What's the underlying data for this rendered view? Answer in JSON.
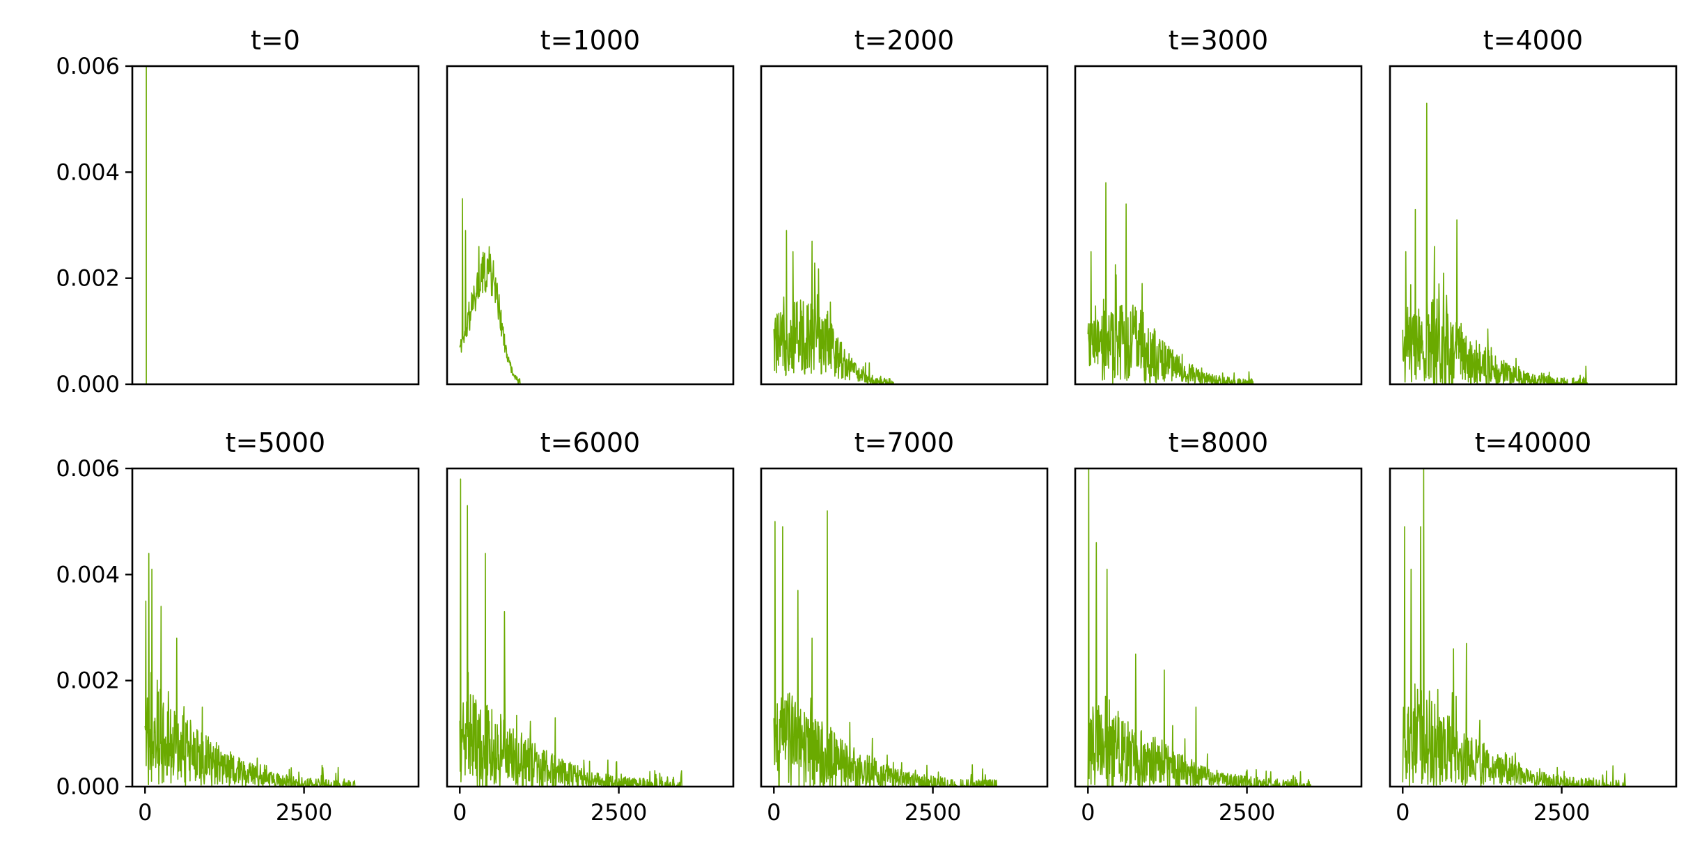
{
  "chart_data": {
    "type": "line",
    "layout": "2x5 grid of subplots",
    "line_color": "#6aaa00",
    "shared_x_range": [
      -200,
      4300
    ],
    "shared_y_range": [
      0,
      0.006
    ],
    "x_ticks": [
      0,
      2500
    ],
    "x_tick_labels": [
      "0",
      "2500"
    ],
    "y_ticks": [
      0.0,
      0.002,
      0.004,
      0.006
    ],
    "y_tick_labels": [
      "0.000",
      "0.002",
      "0.004",
      "0.006"
    ],
    "panels": [
      {
        "title": "t=0",
        "shape": "spike",
        "spike_x": 20,
        "spike_y": 0.0065
      },
      {
        "title": "t=1000",
        "shape": "hump",
        "start": 0,
        "peak_x": 450,
        "peak_y": 0.0022,
        "end": 950,
        "noise": 0.0005,
        "spikes": [
          [
            40,
            0.0035
          ],
          [
            90,
            0.0029
          ],
          [
            300,
            0.0026
          ]
        ]
      },
      {
        "title": "t=2000",
        "shape": "decay",
        "start": 0,
        "peak_x": 700,
        "peak_y": 0.0011,
        "end": 1900,
        "noise": 0.0009,
        "spikes": [
          [
            200,
            0.0029
          ],
          [
            300,
            0.0025
          ],
          [
            600,
            0.0027
          ]
        ]
      },
      {
        "title": "t=3000",
        "shape": "decay",
        "start": 0,
        "peak_x": 700,
        "peak_y": 0.0009,
        "end": 2600,
        "noise": 0.0009,
        "spikes": [
          [
            50,
            0.0025
          ],
          [
            280,
            0.0038
          ],
          [
            600,
            0.0034
          ],
          [
            850,
            0.0019
          ]
        ]
      },
      {
        "title": "t=4000",
        "shape": "decay",
        "start": 0,
        "peak_x": 500,
        "peak_y": 0.0009,
        "end": 2900,
        "noise": 0.001,
        "spikes": [
          [
            50,
            0.0025
          ],
          [
            200,
            0.0033
          ],
          [
            380,
            0.0053
          ],
          [
            500,
            0.0026
          ],
          [
            850,
            0.0031
          ]
        ]
      },
      {
        "title": "t=5000",
        "shape": "decay",
        "start": 0,
        "peak_x": 200,
        "peak_y": 0.001,
        "end": 3300,
        "noise": 0.001,
        "spikes": [
          [
            10,
            0.0035
          ],
          [
            60,
            0.0044
          ],
          [
            110,
            0.0041
          ],
          [
            250,
            0.0034
          ],
          [
            500,
            0.0028
          ],
          [
            900,
            0.0015
          ]
        ]
      },
      {
        "title": "t=6000",
        "shape": "decay",
        "start": 0,
        "peak_x": 150,
        "peak_y": 0.001,
        "end": 3500,
        "noise": 0.0011,
        "spikes": [
          [
            10,
            0.0058
          ],
          [
            120,
            0.0053
          ],
          [
            400,
            0.0044
          ],
          [
            700,
            0.0033
          ],
          [
            1500,
            0.0013
          ]
        ]
      },
      {
        "title": "t=7000",
        "shape": "decay",
        "start": 0,
        "peak_x": 150,
        "peak_y": 0.001,
        "end": 3500,
        "noise": 0.0011,
        "spikes": [
          [
            20,
            0.005
          ],
          [
            140,
            0.0049
          ],
          [
            380,
            0.0037
          ],
          [
            840,
            0.0052
          ],
          [
            600,
            0.0028
          ]
        ]
      },
      {
        "title": "t=8000",
        "shape": "decay",
        "start": 0,
        "peak_x": 150,
        "peak_y": 0.001,
        "end": 3500,
        "noise": 0.0011,
        "spikes": [
          [
            10,
            0.0062
          ],
          [
            130,
            0.0046
          ],
          [
            300,
            0.0041
          ],
          [
            750,
            0.0025
          ],
          [
            1200,
            0.0022
          ],
          [
            1700,
            0.0015
          ]
        ]
      },
      {
        "title": "t=40000",
        "shape": "decay",
        "start": 0,
        "peak_x": 200,
        "peak_y": 0.0011,
        "end": 3500,
        "noise": 0.0011,
        "spikes": [
          [
            30,
            0.0049
          ],
          [
            130,
            0.0041
          ],
          [
            280,
            0.0049
          ],
          [
            330,
            0.006
          ],
          [
            800,
            0.0026
          ],
          [
            1000,
            0.0027
          ]
        ]
      }
    ]
  }
}
